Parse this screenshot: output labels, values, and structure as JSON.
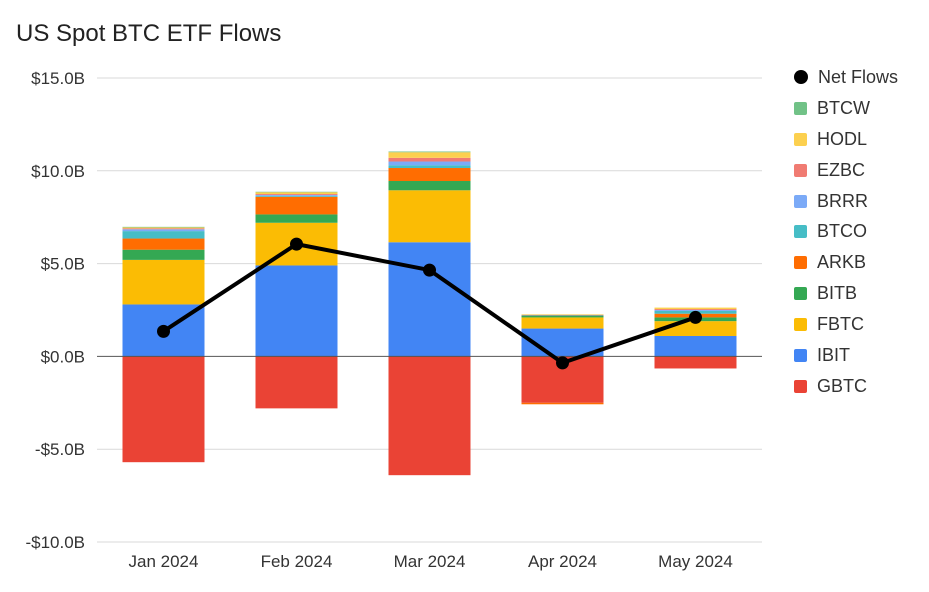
{
  "chart_data": {
    "type": "bar",
    "title": "US Spot BTC ETF Flows",
    "xlabel": "",
    "ylabel": "",
    "ylim": [
      -10,
      15
    ],
    "yticks": [
      15,
      10,
      5,
      0,
      -5,
      -10
    ],
    "ytick_labels": [
      "$15.0B",
      "$10.0B",
      "$5.0B",
      "$0.0B",
      "-$5.0B",
      "-$10.0B"
    ],
    "categories": [
      "Jan 2024",
      "Feb 2024",
      "Mar 2024",
      "Apr 2024",
      "May 2024"
    ],
    "series": [
      {
        "name": "GBTC",
        "color": "#ea4335",
        "values": [
          -5.7,
          -2.8,
          -6.4,
          -2.5,
          -0.65
        ]
      },
      {
        "name": "IBIT",
        "color": "#4285f4",
        "values": [
          2.8,
          4.9,
          6.15,
          1.5,
          1.1
        ]
      },
      {
        "name": "FBTC",
        "color": "#fbbc04",
        "values": [
          2.4,
          2.3,
          2.8,
          0.6,
          0.8
        ]
      },
      {
        "name": "BITB",
        "color": "#34a853",
        "values": [
          0.55,
          0.45,
          0.5,
          0.1,
          0.2
        ]
      },
      {
        "name": "ARKB",
        "color": "#ff6d01",
        "values": [
          0.6,
          0.95,
          0.7,
          -0.08,
          0.2
        ]
      },
      {
        "name": "BTCO",
        "color": "#46bdc6",
        "values": [
          0.4,
          0.05,
          0.15,
          0.02,
          0.15
        ]
      },
      {
        "name": "BRRR",
        "color": "#7baaf7",
        "values": [
          0.1,
          0.05,
          0.2,
          0.01,
          0.05
        ]
      },
      {
        "name": "EZBC",
        "color": "#f07b72",
        "values": [
          0.05,
          0.05,
          0.2,
          0.01,
          0.05
        ]
      },
      {
        "name": "HODL",
        "color": "#fcd04f",
        "values": [
          0.05,
          0.1,
          0.3,
          0.03,
          0.08
        ]
      },
      {
        "name": "BTCW",
        "color": "#71c287",
        "values": [
          0.03,
          0.02,
          0.04,
          0.0,
          0.0
        ]
      }
    ],
    "line_series": {
      "name": "Net Flows",
      "color": "#000000",
      "values": [
        1.35,
        6.05,
        4.65,
        -0.35,
        2.1
      ]
    },
    "legend_order": [
      "Net Flows",
      "BTCW",
      "HODL",
      "EZBC",
      "BRRR",
      "BTCO",
      "ARKB",
      "BITB",
      "FBTC",
      "IBIT",
      "GBTC"
    ],
    "legend_position": "right",
    "grid": true
  }
}
